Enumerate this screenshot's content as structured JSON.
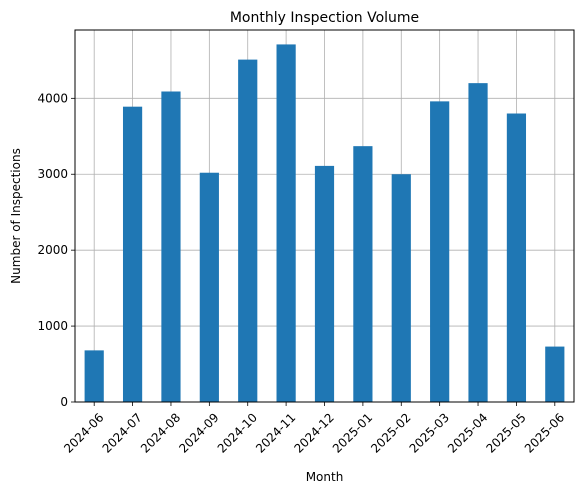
{
  "chart_data": {
    "type": "bar",
    "title": "Monthly Inspection Volume",
    "xlabel": "Month",
    "ylabel": "Number of Inspections",
    "categories": [
      "2024-06",
      "2024-07",
      "2024-08",
      "2024-09",
      "2024-10",
      "2024-11",
      "2024-12",
      "2025-01",
      "2025-02",
      "2025-03",
      "2025-04",
      "2025-05",
      "2025-06"
    ],
    "values": [
      680,
      3890,
      4090,
      3020,
      4510,
      4710,
      3110,
      3370,
      3000,
      3960,
      4200,
      3800,
      730
    ],
    "ylim": [
      0,
      4900
    ],
    "yticks": [
      0,
      1000,
      2000,
      3000,
      4000
    ],
    "grid": true,
    "legend": "none",
    "bar_color": "#1f77b4",
    "grid_color": "#b0b0b0",
    "xtick_rotation": 45
  }
}
